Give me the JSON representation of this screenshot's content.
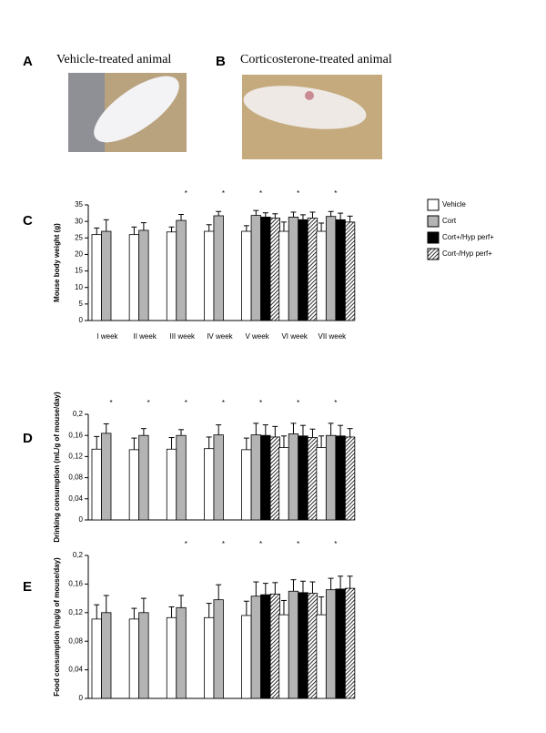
{
  "photos": [
    {
      "label": "A",
      "caption": "Vehicle-treated animal"
    },
    {
      "label": "B",
      "caption": "Corticosterone-treated animal"
    }
  ],
  "chart_data": [
    {
      "type": "bar",
      "label": "C",
      "ylabel": "Mouse body weight (g)",
      "categories": [
        "I week",
        "II week",
        "III week",
        "IV week",
        "V week",
        "VI week",
        "VII week"
      ],
      "stars": [
        null,
        null,
        "*",
        "*",
        "*",
        "*",
        "*"
      ],
      "ylim": [
        0,
        35
      ],
      "yticks": [
        0,
        5,
        10,
        15,
        20,
        25,
        30,
        35
      ],
      "legend": "right",
      "series": [
        {
          "name": "Vehicle",
          "color": "#ffffff",
          "values": [
            26,
            26,
            26.8,
            27,
            27,
            27,
            27
          ],
          "errors": [
            2,
            2.3,
            1.5,
            2,
            1.7,
            2.8,
            2.5
          ]
        },
        {
          "name": "Cort",
          "color": "#b4b4b4",
          "values": [
            27,
            27.3,
            30.3,
            31.7,
            31.8,
            31.3,
            31.5
          ],
          "errors": [
            3.5,
            2.3,
            1.8,
            1.3,
            1.5,
            1.5,
            1.5
          ]
        },
        {
          "name": "Cort+/Hyp perf+",
          "color": "#000000",
          "values": [
            null,
            null,
            null,
            null,
            31.3,
            30.5,
            30.5
          ],
          "errors": [
            null,
            null,
            null,
            null,
            1.3,
            1.5,
            2
          ]
        },
        {
          "name": "Cort-/Hyp perf+",
          "color": "#a0a0a0",
          "hatch": true,
          "values": [
            null,
            null,
            null,
            null,
            31,
            31,
            29.8
          ],
          "errors": [
            null,
            null,
            null,
            null,
            1.3,
            1.8,
            1.8
          ]
        }
      ]
    },
    {
      "type": "bar",
      "label": "D",
      "ylabel": "Drinking consumption (mL/g of mouse/day)",
      "categories": [
        null,
        null,
        null,
        null,
        null,
        null,
        null
      ],
      "stars": [
        "*",
        "*",
        "*",
        "*",
        "*",
        "*",
        "*"
      ],
      "ylim": [
        0,
        0.2
      ],
      "yticks": [
        0,
        {
          "value": 0.04,
          "label": "0,04"
        },
        {
          "value": 0.08,
          "label": "0,08"
        },
        {
          "value": 0.12,
          "label": "0,12"
        },
        {
          "value": 0.16,
          "label": "0,16"
        },
        {
          "value": 0.2,
          "label": "0,2"
        }
      ],
      "series": [
        {
          "color": "#ffffff",
          "values": [
            0.134,
            0.133,
            0.134,
            0.135,
            0.133,
            0.137,
            0.137
          ],
          "errors": [
            0.024,
            0.022,
            0.022,
            0.022,
            0.022,
            0.022,
            0.022
          ]
        },
        {
          "color": "#b4b4b4",
          "values": [
            0.164,
            0.16,
            0.16,
            0.161,
            0.161,
            0.163,
            0.16
          ],
          "errors": [
            0.018,
            0.013,
            0.011,
            0.019,
            0.022,
            0.02,
            0.023
          ]
        },
        {
          "color": "#000000",
          "values": [
            null,
            null,
            null,
            null,
            0.16,
            0.159,
            0.159
          ],
          "errors": [
            null,
            null,
            null,
            null,
            0.02,
            0.02,
            0.02
          ]
        },
        {
          "color": "#a0a0a0",
          "hatch": true,
          "values": [
            null,
            null,
            null,
            null,
            0.157,
            0.156,
            0.157
          ],
          "errors": [
            null,
            null,
            null,
            null,
            0.02,
            0.016,
            0.016
          ]
        }
      ]
    },
    {
      "type": "bar",
      "label": "E",
      "ylabel": "Food consumption (mg/g of mouse/day)",
      "categories": [
        null,
        null,
        null,
        null,
        null,
        null,
        null
      ],
      "stars": [
        null,
        null,
        "*",
        "*",
        "*",
        "*",
        "*"
      ],
      "ylim": [
        0,
        0.2
      ],
      "yticks": [
        0,
        {
          "value": 0.04,
          "label": "0,04"
        },
        {
          "value": 0.08,
          "label": "0,08"
        },
        {
          "value": 0.12,
          "label": "0,12"
        },
        {
          "value": 0.16,
          "label": "0,16"
        },
        {
          "value": 0.2,
          "label": "0,2"
        }
      ],
      "series": [
        {
          "color": "#ffffff",
          "values": [
            0.111,
            0.111,
            0.113,
            0.113,
            0.116,
            0.117,
            0.117
          ],
          "errors": [
            0.02,
            0.015,
            0.015,
            0.02,
            0.02,
            0.02,
            0.025
          ]
        },
        {
          "color": "#b4b4b4",
          "values": [
            0.12,
            0.12,
            0.127,
            0.138,
            0.143,
            0.15,
            0.152
          ],
          "errors": [
            0.024,
            0.02,
            0.017,
            0.021,
            0.02,
            0.016,
            0.016
          ]
        },
        {
          "color": "#000000",
          "values": [
            null,
            null,
            null,
            null,
            0.145,
            0.148,
            0.153
          ],
          "errors": [
            null,
            null,
            null,
            null,
            0.016,
            0.016,
            0.018
          ]
        },
        {
          "color": "#a0a0a0",
          "hatch": true,
          "values": [
            null,
            null,
            null,
            null,
            0.146,
            0.147,
            0.154
          ],
          "errors": [
            null,
            null,
            null,
            null,
            0.016,
            0.016,
            0.017
          ]
        }
      ]
    }
  ]
}
